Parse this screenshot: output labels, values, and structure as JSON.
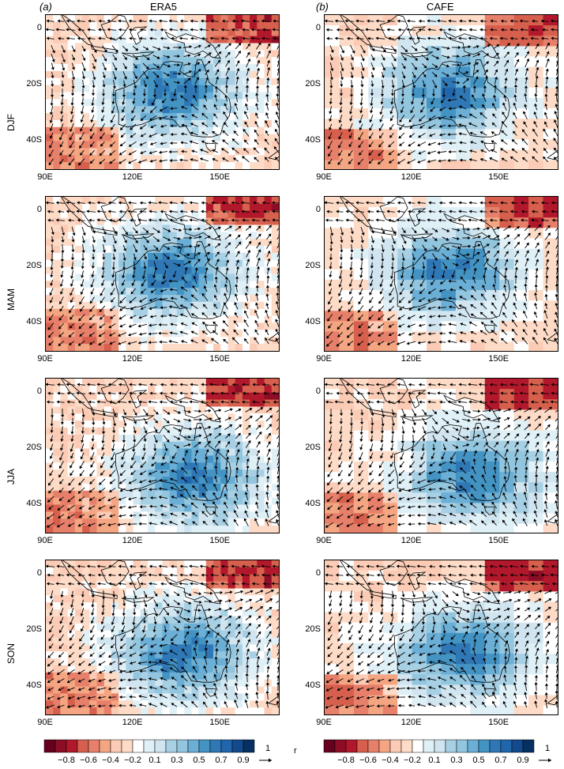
{
  "columns": [
    {
      "letter": "(a)",
      "name": "ERA5"
    },
    {
      "letter": "(b)",
      "name": "CAFE"
    }
  ],
  "seasons": [
    "DJF",
    "MAM",
    "JJA",
    "SON"
  ],
  "lat_ticks": [
    "0",
    "20S",
    "40S"
  ],
  "lon_ticks": [
    "90E",
    "120E",
    "150E"
  ],
  "colorbar": {
    "tick_labels": [
      "−0.8",
      "−0.6",
      "−0.4",
      "−0.2",
      "0.1",
      "0.3",
      "0.5",
      "0.7",
      "0.9"
    ],
    "colors": [
      "#67001f",
      "#8c0d25",
      "#b2182b",
      "#d6604d",
      "#e7806a",
      "#f4a582",
      "#fbcbb5",
      "#fddbc7",
      "#ffffff",
      "#e0f0f7",
      "#d1e5f0",
      "#a8d0e4",
      "#92c5de",
      "#6baed6",
      "#4393c3",
      "#2f77b5",
      "#2166ac",
      "#124a8c",
      "#053061"
    ],
    "unit_label": "r",
    "vector_ref_label": "1"
  },
  "map_style": {
    "positive": "#2166ac",
    "negative": "#d6604d",
    "coast": "#000000",
    "arrow": "#000000"
  }
}
